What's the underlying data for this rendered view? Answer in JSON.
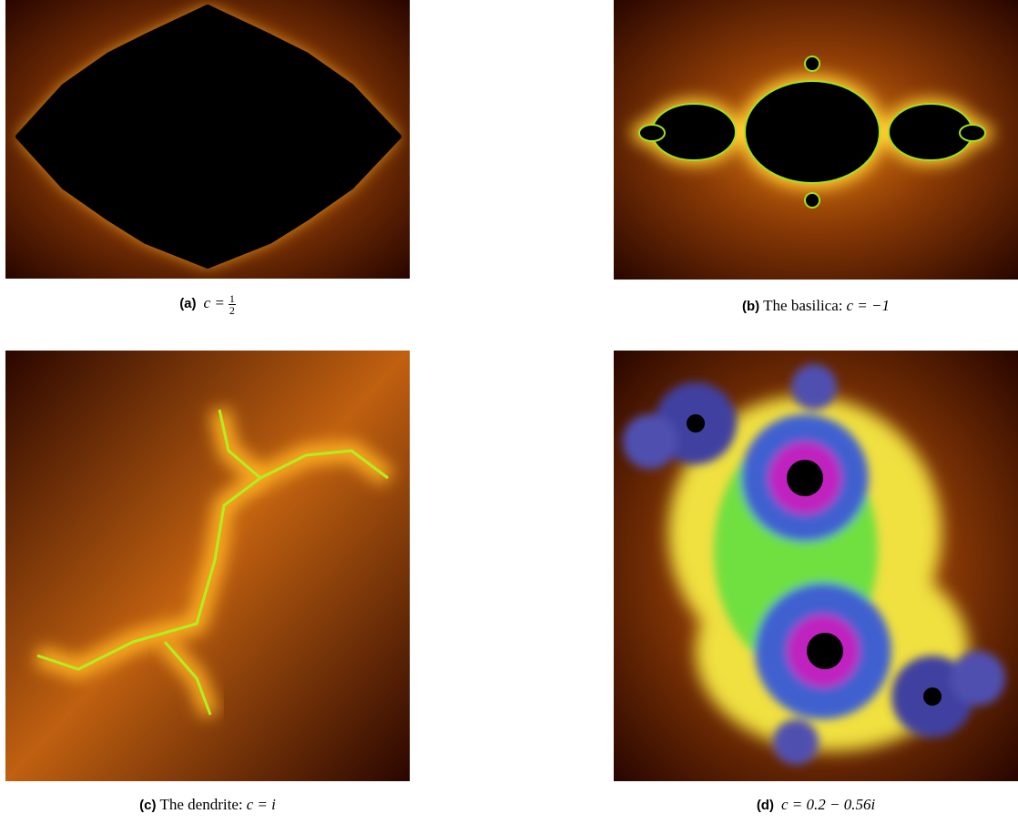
{
  "figures": [
    {
      "label": "(a)",
      "text": "",
      "math": "c =",
      "fraction": {
        "numerator": "1",
        "denominator": "2"
      }
    },
    {
      "label": "(b)",
      "text": "The basilica:",
      "math": "c = −1"
    },
    {
      "label": "(c)",
      "text": "The dendrite:",
      "math": "c = i"
    },
    {
      "label": "(d)",
      "text": "",
      "math": "c = 0.2 − 0.56i"
    }
  ]
}
